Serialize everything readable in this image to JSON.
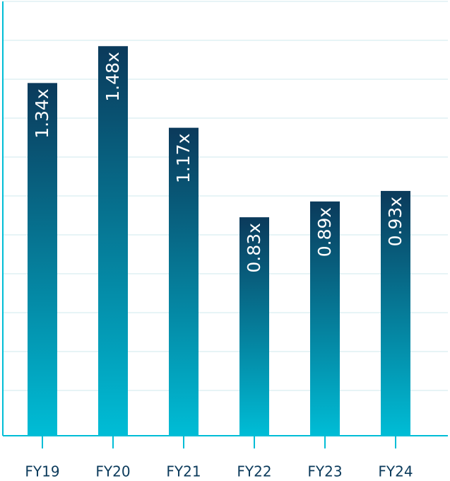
{
  "chart_data": {
    "type": "bar",
    "categories": [
      "FY19",
      "FY20",
      "FY21",
      "FY22",
      "FY23",
      "FY24"
    ],
    "values": [
      1.34,
      1.48,
      1.17,
      0.83,
      0.89,
      0.93
    ],
    "value_labels": [
      "1.34x",
      "1.48x",
      "1.17x",
      "0.83x",
      "0.89x",
      "0.93x"
    ],
    "gradient": [
      "#0b3a5b",
      "#00bdd6"
    ],
    "ylim": [
      0,
      1.65
    ],
    "grid": true
  }
}
